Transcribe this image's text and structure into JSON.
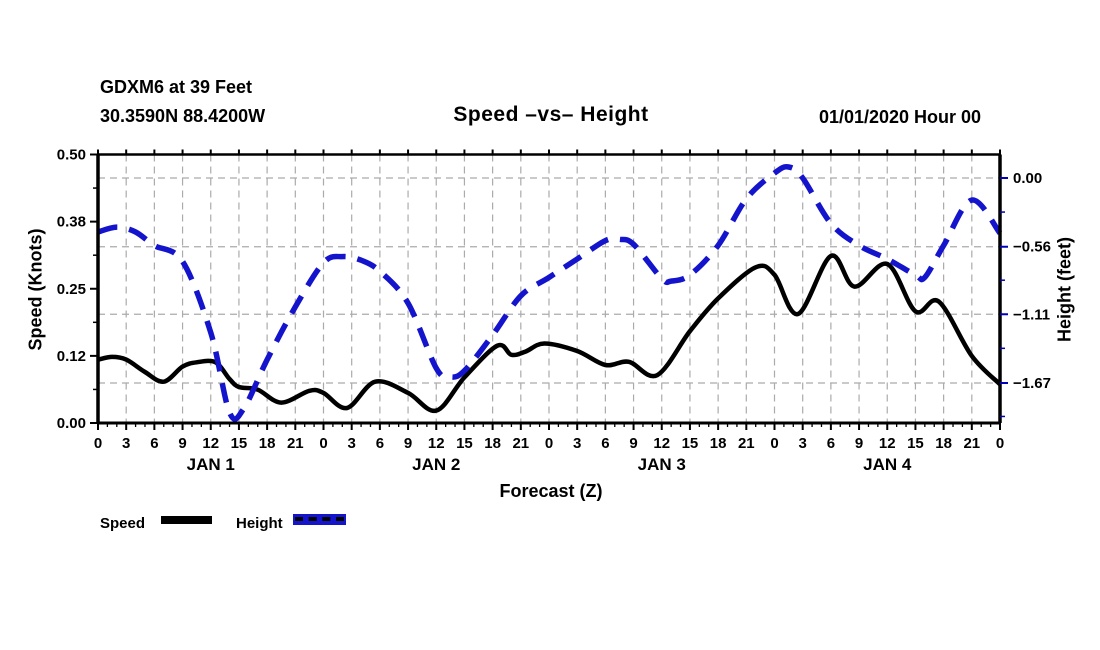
{
  "header": {
    "station_line1": "GDXM6 at 39 Feet",
    "station_line2": "30.3590N 88.4200W",
    "title": "Speed –vs– Height",
    "datetime": "01/01/2020 Hour 00"
  },
  "legend": {
    "speed_label": "Speed",
    "height_label": "Height"
  },
  "colors": {
    "speed_line": "#000000",
    "height_line": "#1414cc",
    "right_axis_tick": "#0000bb",
    "grid": "#ababab",
    "axis": "#000000"
  },
  "chart_data": {
    "type": "line",
    "title": "Speed –vs– Height",
    "xlabel": "Forecast (Z)",
    "x_hours_range": [
      0,
      96
    ],
    "x_major_tick_every_hours": 3,
    "x_minor_tick_every_hours": 1,
    "x_tick_labels": [
      "0",
      "3",
      "6",
      "9",
      "12",
      "15",
      "18",
      "21",
      "0",
      "3",
      "6",
      "9",
      "12",
      "15",
      "18",
      "21",
      "0",
      "3",
      "6",
      "9",
      "12",
      "15",
      "18",
      "21",
      "0",
      "3",
      "6",
      "9",
      "12",
      "15",
      "18",
      "21",
      "0"
    ],
    "day_labels": [
      {
        "label": "JAN 1",
        "hour": 12
      },
      {
        "label": "JAN 2",
        "hour": 36
      },
      {
        "label": "JAN 3",
        "hour": 60
      },
      {
        "label": "JAN 4",
        "hour": 84
      }
    ],
    "grid": "dashed, vertical every 3h, horizontal at right-axis major ticks",
    "legend_position": "below-left",
    "y_left": {
      "label": "Speed (Knots)",
      "range": [
        0.0,
        0.5
      ],
      "ticks": [
        {
          "label": "0.00",
          "value": 0.0
        },
        {
          "label": "0.12",
          "value": 0.125
        },
        {
          "label": "0.25",
          "value": 0.25
        },
        {
          "label": "0.38",
          "value": 0.375
        },
        {
          "label": "0.50",
          "value": 0.5
        }
      ],
      "minor_ticks": [
        0.0625,
        0.1875,
        0.3125,
        0.4375
      ]
    },
    "y_right": {
      "label": "Height (feet)",
      "ticks": [
        {
          "label": "0.00",
          "value": 0.0
        },
        {
          "label": "−0.56",
          "value": -0.56
        },
        {
          "label": "−1.11",
          "value": -1.11
        },
        {
          "label": "−1.67",
          "value": -1.67
        }
      ],
      "minor_ticks": [
        -0.2775,
        -0.8325,
        -1.3875,
        -1.9425
      ]
    },
    "series": [
      {
        "name": "Speed",
        "axis": "left",
        "units": "knots",
        "style": "solid",
        "color": "#000000",
        "points": [
          [
            0,
            0.118
          ],
          [
            1.5,
            0.123
          ],
          [
            3,
            0.118
          ],
          [
            5,
            0.095
          ],
          [
            7,
            0.077
          ],
          [
            9,
            0.105
          ],
          [
            10.5,
            0.113
          ],
          [
            12.5,
            0.113
          ],
          [
            14,
            0.082
          ],
          [
            15,
            0.067
          ],
          [
            17,
            0.062
          ],
          [
            19.5,
            0.038
          ],
          [
            22.5,
            0.06
          ],
          [
            24,
            0.056
          ],
          [
            26.5,
            0.028
          ],
          [
            29.5,
            0.077
          ],
          [
            33,
            0.056
          ],
          [
            36,
            0.023
          ],
          [
            39,
            0.085
          ],
          [
            42.5,
            0.144
          ],
          [
            44,
            0.127
          ],
          [
            45.5,
            0.133
          ],
          [
            47.5,
            0.148
          ],
          [
            51,
            0.134
          ],
          [
            54,
            0.108
          ],
          [
            56.5,
            0.114
          ],
          [
            59.5,
            0.089
          ],
          [
            63,
            0.171
          ],
          [
            66,
            0.232
          ],
          [
            70,
            0.29
          ],
          [
            72,
            0.276
          ],
          [
            74.5,
            0.203
          ],
          [
            78,
            0.311
          ],
          [
            80.5,
            0.254
          ],
          [
            84,
            0.296
          ],
          [
            87,
            0.208
          ],
          [
            89.5,
            0.226
          ],
          [
            93,
            0.125
          ],
          [
            96,
            0.072
          ]
        ]
      },
      {
        "name": "Height",
        "axis": "right",
        "units": "feet",
        "style": "dashed",
        "color": "#1414cc",
        "points": [
          [
            0,
            -0.44
          ],
          [
            2,
            -0.4
          ],
          [
            4,
            -0.44
          ],
          [
            6,
            -0.55
          ],
          [
            9,
            -0.68
          ],
          [
            12,
            -1.26
          ],
          [
            14,
            -1.91
          ],
          [
            15.5,
            -1.88
          ],
          [
            18,
            -1.48
          ],
          [
            21,
            -1.05
          ],
          [
            24,
            -0.69
          ],
          [
            26,
            -0.64
          ],
          [
            28,
            -0.67
          ],
          [
            30,
            -0.76
          ],
          [
            33,
            -1.02
          ],
          [
            36,
            -1.55
          ],
          [
            37.5,
            -1.62
          ],
          [
            39,
            -1.57
          ],
          [
            42,
            -1.28
          ],
          [
            45,
            -0.96
          ],
          [
            48,
            -0.81
          ],
          [
            51,
            -0.66
          ],
          [
            54,
            -0.51
          ],
          [
            55.5,
            -0.5
          ],
          [
            57,
            -0.54
          ],
          [
            60,
            -0.82
          ],
          [
            61,
            -0.84
          ],
          [
            63,
            -0.79
          ],
          [
            66,
            -0.55
          ],
          [
            69,
            -0.17
          ],
          [
            72,
            0.04
          ],
          [
            73.5,
            0.09
          ],
          [
            75,
            0.0
          ],
          [
            78,
            -0.37
          ],
          [
            81,
            -0.55
          ],
          [
            84,
            -0.66
          ],
          [
            87,
            -0.79
          ],
          [
            88,
            -0.81
          ],
          [
            90,
            -0.55
          ],
          [
            93,
            -0.18
          ],
          [
            96,
            -0.45
          ]
        ]
      }
    ]
  }
}
